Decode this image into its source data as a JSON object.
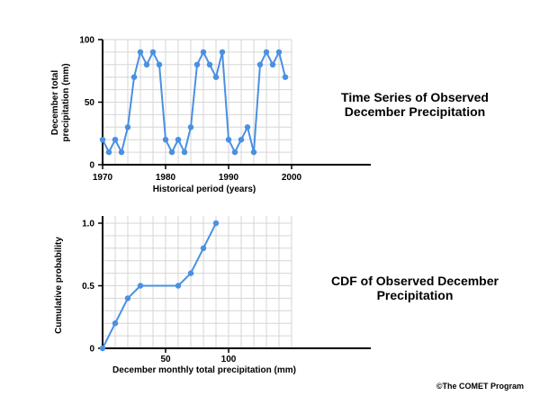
{
  "charts": [
    {
      "type": "line",
      "title_lines": [
        "Time Series of Observed",
        "December Precipitation"
      ],
      "xlabel": "Historical period (years)",
      "ylabel_lines": [
        "December total",
        "precipitation (mm)"
      ],
      "xlim": [
        1970,
        2000
      ],
      "ylim": [
        0,
        100
      ],
      "xticks": [
        1970,
        1980,
        1990,
        2000
      ],
      "yticks": [
        0,
        50,
        100
      ],
      "x": [
        1970,
        1971,
        1972,
        1973,
        1974,
        1975,
        1976,
        1977,
        1978,
        1979,
        1980,
        1981,
        1982,
        1983,
        1984,
        1985,
        1986,
        1987,
        1988,
        1989,
        1990,
        1991,
        1992,
        1993,
        1994,
        1995,
        1996,
        1997,
        1998,
        1999
      ],
      "y": [
        20,
        10,
        20,
        10,
        30,
        70,
        90,
        80,
        90,
        80,
        20,
        10,
        20,
        10,
        30,
        80,
        90,
        80,
        70,
        90,
        20,
        10,
        20,
        30,
        10,
        80,
        90,
        80,
        90,
        70
      ],
      "color": "#4a90e2",
      "grid": true
    },
    {
      "type": "line",
      "title_lines": [
        "CDF of Observed December",
        "Precipitation"
      ],
      "xlabel": "December monthly total precipitation (mm)",
      "ylabel_lines": [
        "Cumulative probability"
      ],
      "xlim": [
        0,
        150
      ],
      "ylim": [
        0,
        1
      ],
      "xticks": [
        50,
        100
      ],
      "xticks_labels": [
        "50",
        "100"
      ],
      "yticks": [
        0,
        0.5,
        1.0
      ],
      "yticks_labels": [
        "0",
        "0.5",
        "1.0"
      ],
      "x": [
        0,
        10,
        20,
        30,
        60,
        70,
        80,
        90
      ],
      "y": [
        0,
        0.2,
        0.4,
        0.5,
        0.5,
        0.6,
        0.8,
        1.0
      ],
      "color": "#4a90e2",
      "grid": true
    }
  ],
  "credit": "©The COMET Program"
}
